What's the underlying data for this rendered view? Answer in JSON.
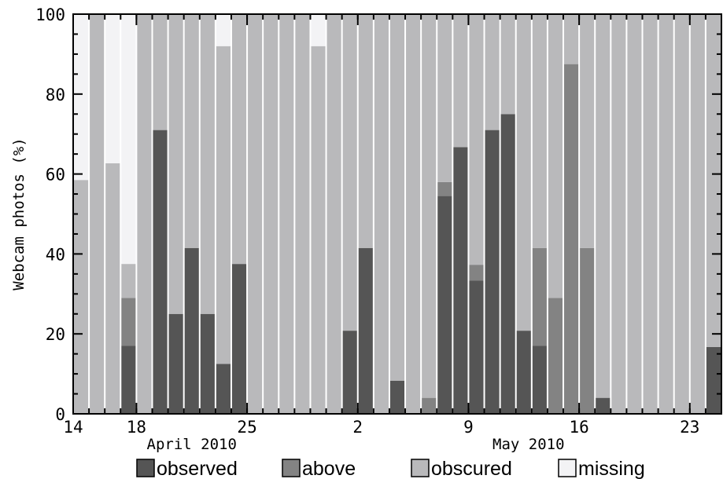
{
  "chart_data": {
    "type": "bar",
    "stacked": true,
    "ylabel": "Webcam photos (%)",
    "ylim": [
      0,
      100
    ],
    "yticks": [
      0,
      20,
      40,
      60,
      80,
      100
    ],
    "x_start": "2010-04-14",
    "x_tick_labels": [
      "14",
      "18",
      "25",
      "2",
      "9",
      "16",
      "23"
    ],
    "month_labels": [
      "April 2010",
      "May 2010"
    ],
    "series": [
      {
        "name": "observed",
        "color": "#555555",
        "values": [
          0,
          0,
          0,
          17,
          0,
          71,
          25,
          41.5,
          25,
          12.5,
          37.5,
          0,
          0,
          0,
          0,
          0,
          0,
          20.8,
          41.5,
          0,
          8.3,
          0,
          0,
          54.5,
          66.7,
          33.3,
          71,
          75,
          20.8,
          17,
          0,
          0,
          0,
          4,
          0,
          0,
          0,
          0,
          0,
          0,
          16.7
        ]
      },
      {
        "name": "above",
        "color": "#838383",
        "values": [
          0,
          0,
          0,
          12,
          0,
          0,
          0,
          0,
          0,
          0,
          0,
          0,
          0,
          0,
          0,
          0,
          0,
          0,
          0,
          0,
          0,
          0,
          4,
          3.5,
          0,
          4,
          0,
          0,
          0,
          24.5,
          29,
          87.5,
          41.5,
          0,
          0,
          0,
          0,
          0,
          0,
          0,
          0
        ]
      },
      {
        "name": "obscured",
        "color": "#b9b9bb",
        "values": [
          58.5,
          100,
          62.7,
          8.5,
          100,
          29,
          75,
          58.5,
          75,
          79.5,
          62.5,
          100,
          100,
          100,
          100,
          92,
          100,
          79.2,
          58.5,
          100,
          91.7,
          100,
          96,
          42,
          33.3,
          62.7,
          29,
          25,
          79.2,
          58.5,
          71,
          12.5,
          58.5,
          96,
          100,
          100,
          100,
          100,
          100,
          100,
          83.3
        ]
      },
      {
        "name": "missing",
        "color": "#f3f3f5",
        "values": [
          41.5,
          0,
          37.3,
          62.5,
          0,
          0,
          0,
          0,
          0,
          8,
          0,
          0,
          0,
          0,
          0,
          8,
          0,
          0,
          0,
          0,
          0,
          0,
          0,
          0,
          0,
          0,
          0,
          0,
          0,
          0,
          0,
          0,
          0,
          0,
          0,
          0,
          0,
          0,
          0,
          0,
          0
        ]
      }
    ],
    "legend_position": "bottom",
    "grid": false
  }
}
